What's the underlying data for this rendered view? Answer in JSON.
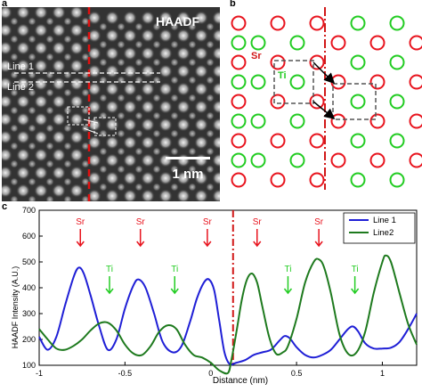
{
  "panel_a": {
    "letter": "a",
    "label_haadf": "HAADF",
    "line1_label": "Line 1",
    "line2_label": "Line 2",
    "scale_label": "1 nm"
  },
  "panel_b": {
    "letter": "b",
    "sr_label": "Sr",
    "ti_label": "Ti",
    "colors": {
      "sr": "#e8141e",
      "ti": "#22cc22",
      "boundary": "#d11818",
      "box": "#555555"
    }
  },
  "panel_c": {
    "letter": "c"
  },
  "chart_data": {
    "type": "line",
    "title": "",
    "xlabel": "Distance (nm)",
    "ylabel": "HAADF Intensity (A.U.)",
    "xlim": [
      -1,
      1.2
    ],
    "ylim": [
      100,
      700
    ],
    "x_ticks": [
      "-1",
      "-0.5",
      "0",
      "0.5",
      "1"
    ],
    "y_ticks": [
      "100",
      "200",
      "300",
      "400",
      "500",
      "600",
      "700"
    ],
    "legend_position": "top-right",
    "boundary_x": 0.13,
    "series": [
      {
        "name": "Line 1",
        "color": "#1f1fd6",
        "x": [
          -1.0,
          -0.95,
          -0.9,
          -0.85,
          -0.8,
          -0.77,
          -0.74,
          -0.7,
          -0.65,
          -0.6,
          -0.55,
          -0.5,
          -0.45,
          -0.42,
          -0.38,
          -0.33,
          -0.28,
          -0.22,
          -0.17,
          -0.12,
          -0.08,
          -0.04,
          -0.01,
          0.02,
          0.05,
          0.08,
          0.11,
          0.15,
          0.2,
          0.25,
          0.3,
          0.35,
          0.4,
          0.43,
          0.46,
          0.5,
          0.55,
          0.6,
          0.65,
          0.7,
          0.75,
          0.8,
          0.83,
          0.86,
          0.9,
          0.95,
          1.0,
          1.05,
          1.1,
          1.15,
          1.2
        ],
        "y": [
          210,
          160,
          210,
          330,
          440,
          478,
          455,
          370,
          250,
          160,
          200,
          320,
          410,
          432,
          400,
          300,
          190,
          150,
          175,
          270,
          360,
          420,
          432,
          390,
          270,
          150,
          105,
          110,
          120,
          140,
          150,
          160,
          195,
          213,
          205,
          170,
          140,
          130,
          140,
          160,
          200,
          240,
          250,
          230,
          185,
          165,
          165,
          168,
          190,
          240,
          300
        ]
      },
      {
        "name": "Line2",
        "color": "#1e7a1e",
        "x": [
          -1.0,
          -0.95,
          -0.9,
          -0.85,
          -0.8,
          -0.75,
          -0.7,
          -0.65,
          -0.6,
          -0.55,
          -0.5,
          -0.45,
          -0.4,
          -0.35,
          -0.3,
          -0.25,
          -0.2,
          -0.15,
          -0.1,
          -0.05,
          0.0,
          0.05,
          0.1,
          0.12,
          0.15,
          0.18,
          0.21,
          0.24,
          0.27,
          0.3,
          0.34,
          0.38,
          0.42,
          0.45,
          0.5,
          0.55,
          0.6,
          0.63,
          0.66,
          0.7,
          0.75,
          0.8,
          0.85,
          0.9,
          0.95,
          1.0,
          1.02,
          1.05,
          1.1,
          1.15,
          1.2
        ],
        "y": [
          240,
          200,
          165,
          160,
          175,
          200,
          235,
          262,
          265,
          235,
          180,
          145,
          140,
          175,
          230,
          255,
          240,
          180,
          140,
          130,
          110,
          80,
          70,
          120,
          230,
          350,
          430,
          455,
          420,
          330,
          210,
          145,
          150,
          175,
          280,
          420,
          500,
          510,
          480,
          380,
          220,
          145,
          150,
          230,
          380,
          500,
          525,
          500,
          380,
          260,
          180
        ]
      }
    ],
    "annotations": [
      {
        "text": "Sr",
        "x": -0.76,
        "color": "#e8141e"
      },
      {
        "text": "Sr",
        "x": -0.41,
        "color": "#e8141e"
      },
      {
        "text": "Sr",
        "x": -0.02,
        "color": "#e8141e"
      },
      {
        "text": "Sr",
        "x": 0.27,
        "color": "#e8141e"
      },
      {
        "text": "Sr",
        "x": 0.63,
        "color": "#e8141e"
      },
      {
        "text": "Ti",
        "x": -0.59,
        "color": "#22cc22"
      },
      {
        "text": "Ti",
        "x": -0.21,
        "color": "#22cc22"
      },
      {
        "text": "Ti",
        "x": 0.45,
        "color": "#22cc22"
      },
      {
        "text": "Ti",
        "x": 0.84,
        "color": "#22cc22"
      }
    ]
  }
}
